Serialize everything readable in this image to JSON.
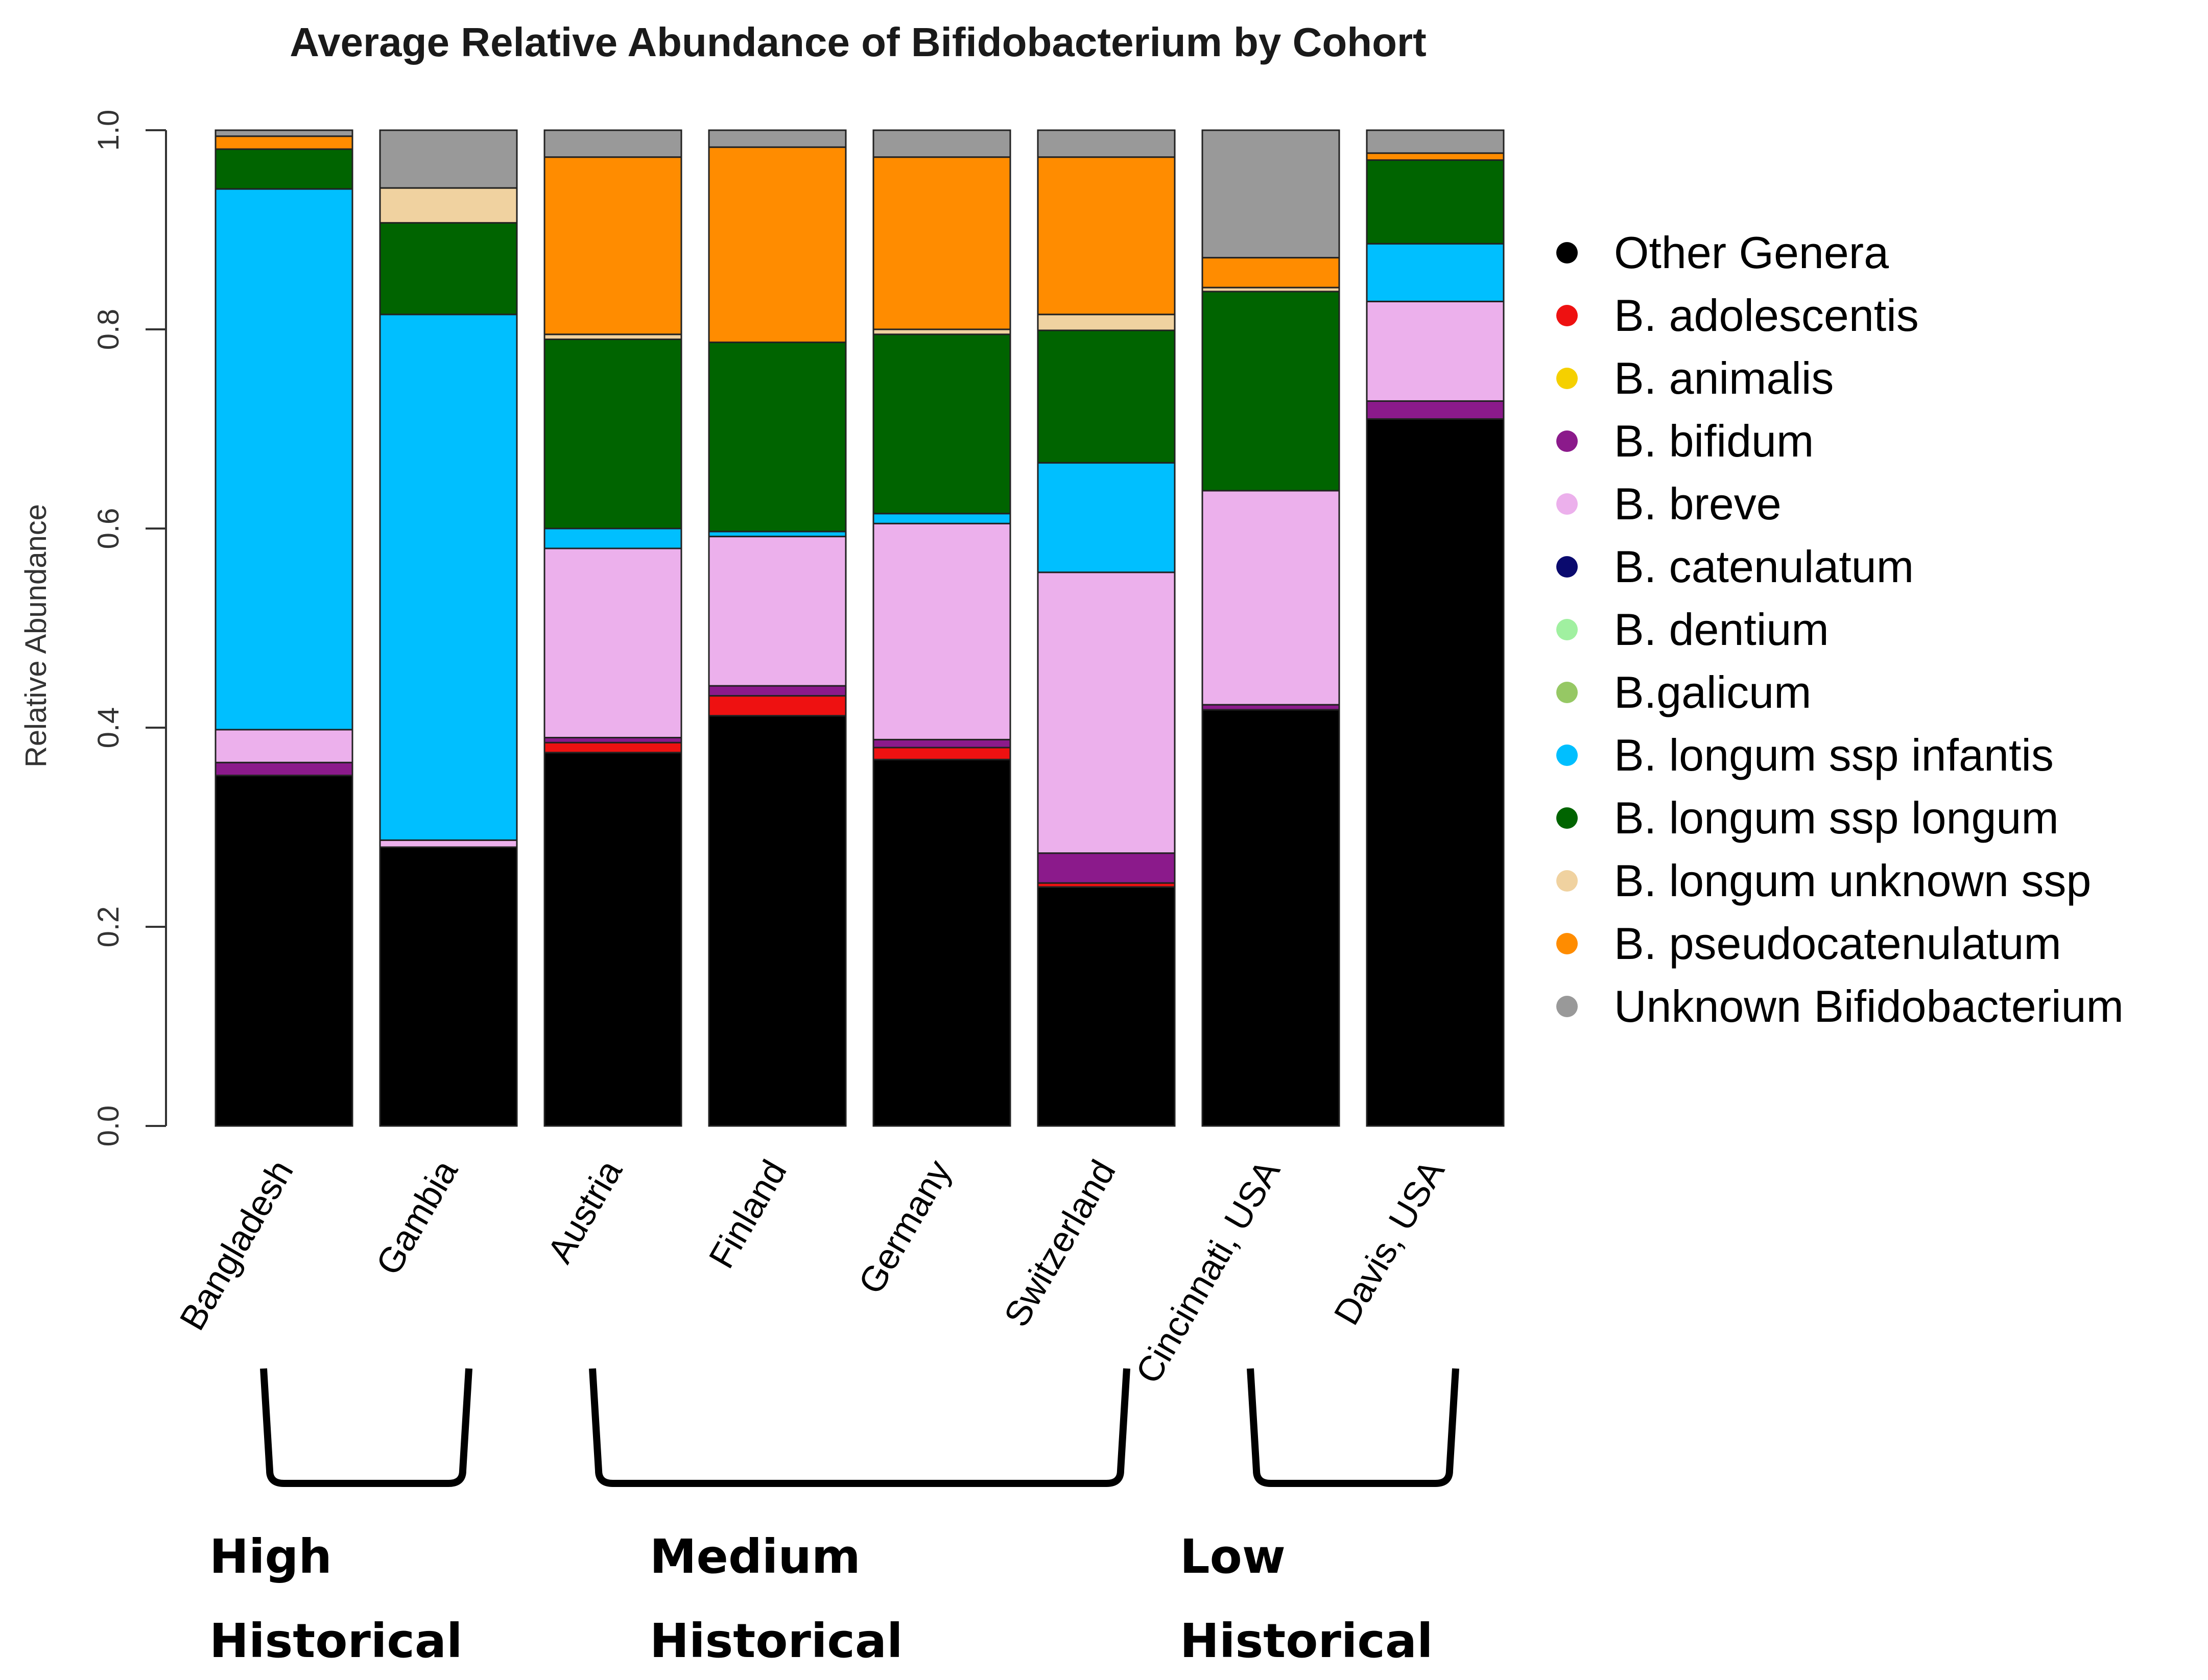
{
  "chart_data": {
    "type": "bar",
    "stacked": true,
    "title": "Average Relative Abundance of Bifidobacterium by Cohort",
    "xlabel": "",
    "ylabel": "Relative Abundance",
    "ylim": [
      0,
      1.0
    ],
    "yticks": [
      "0.0",
      "0.2",
      "0.4",
      "0.6",
      "0.8",
      "1.0"
    ],
    "grid": false,
    "legend_position": "right",
    "categories": [
      "Bangladesh",
      "Gambia",
      "Austria",
      "Finland",
      "Germany",
      "Switzerland",
      "Cincinnati, USA",
      "Davis, USA"
    ],
    "series": [
      {
        "name": "Other Genera",
        "color": "#000000",
        "values": [
          0.352,
          0.28,
          0.375,
          0.412,
          0.368,
          0.24,
          0.418,
          0.71
        ]
      },
      {
        "name": "B. adolescentis",
        "color": "#ee1111",
        "values": [
          0.0,
          0.0,
          0.01,
          0.02,
          0.012,
          0.004,
          0.0,
          0.0
        ]
      },
      {
        "name": "B. animalis",
        "color": "#f5d000",
        "values": [
          0.0,
          0.0,
          0.0,
          0.0,
          0.0,
          0.0,
          0.0,
          0.0
        ]
      },
      {
        "name": "B. bifidum",
        "color": "#8b1a8b",
        "values": [
          0.013,
          0.0,
          0.005,
          0.01,
          0.008,
          0.03,
          0.005,
          0.018
        ]
      },
      {
        "name": "B. breve",
        "color": "#ecb0ec",
        "values": [
          0.033,
          0.007,
          0.19,
          0.15,
          0.217,
          0.282,
          0.215,
          0.1
        ]
      },
      {
        "name": "B. catenulatum",
        "color": "#0a0a6e",
        "values": [
          0.0,
          0.0,
          0.0,
          0.0,
          0.0,
          0.0,
          0.0,
          0.0
        ]
      },
      {
        "name": "B. dentium",
        "color": "#a0f0a0",
        "values": [
          0.0,
          0.0,
          0.0,
          0.0,
          0.0,
          0.0,
          0.0,
          0.0
        ]
      },
      {
        "name": "B.galicum",
        "color": "#96c864",
        "values": [
          0.0,
          0.0,
          0.0,
          0.0,
          0.0,
          0.0,
          0.0,
          0.0
        ]
      },
      {
        "name": "B. longum ssp infantis",
        "color": "#00bfff",
        "values": [
          0.543,
          0.528,
          0.02,
          0.005,
          0.01,
          0.11,
          0.0,
          0.058
        ]
      },
      {
        "name": "B. longum ssp longum",
        "color": "#006400",
        "values": [
          0.04,
          0.092,
          0.19,
          0.19,
          0.18,
          0.133,
          0.2,
          0.084
        ]
      },
      {
        "name": "B. longum unknown ssp",
        "color": "#f0d2a0",
        "values": [
          0.0,
          0.035,
          0.005,
          0.0,
          0.005,
          0.016,
          0.004,
          0.0
        ]
      },
      {
        "name": "B. pseudocatenulatum",
        "color": "#ff8c00",
        "values": [
          0.013,
          0.0,
          0.178,
          0.196,
          0.173,
          0.158,
          0.03,
          0.007
        ]
      },
      {
        "name": "Unknown Bifidobacterium",
        "color": "#999999",
        "values": [
          0.006,
          0.058,
          0.027,
          0.017,
          0.027,
          0.027,
          0.128,
          0.023
        ]
      }
    ],
    "group_labels": [
      {
        "line1": "High",
        "line2": "Historical",
        "first": 0,
        "last": 1
      },
      {
        "line1": "Medium",
        "line2": "Historical",
        "first": 2,
        "last": 5
      },
      {
        "line1": "Low",
        "line2": "Historical",
        "first": 6,
        "last": 7
      }
    ]
  }
}
